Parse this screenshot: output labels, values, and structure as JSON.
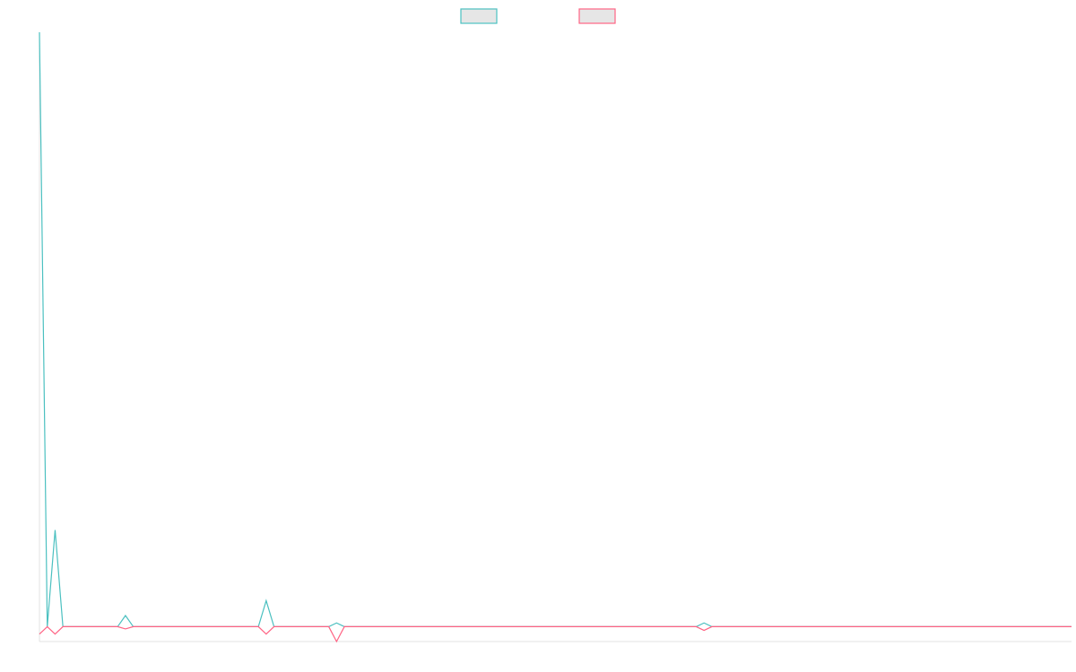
{
  "chart_data": {
    "type": "line",
    "title": "",
    "xlabel": "",
    "ylabel": "",
    "grid": false,
    "legend_position": "top-center",
    "x": [
      0,
      1,
      2,
      3,
      4,
      5,
      6,
      7,
      8,
      9,
      10,
      11,
      12,
      13,
      14,
      15,
      16,
      17,
      18,
      19,
      20,
      21,
      22,
      23,
      24,
      25,
      26,
      27,
      28,
      29,
      30,
      31,
      32,
      33,
      34,
      35,
      36,
      37,
      38,
      39,
      40,
      41,
      42,
      43,
      44,
      45,
      46,
      47,
      48,
      49,
      50,
      51,
      52,
      53,
      54,
      55,
      56,
      57,
      58,
      59,
      60,
      61,
      62,
      63,
      64,
      65,
      66,
      67,
      68,
      69,
      70,
      71,
      72,
      73,
      74,
      75,
      76,
      77,
      78,
      79,
      80,
      81,
      82,
      83,
      84,
      85,
      86,
      87,
      88,
      89,
      90,
      91,
      92,
      93,
      94,
      95,
      96,
      97,
      98,
      99,
      100,
      101,
      102,
      103,
      104,
      105,
      106,
      107,
      108,
      109,
      110,
      111,
      112,
      113,
      114,
      115,
      116,
      117,
      118,
      119,
      120,
      121,
      122,
      123,
      124,
      125,
      126,
      127,
      128,
      129,
      130,
      131,
      132
    ],
    "xlim": [
      0,
      132
    ],
    "ylim": [
      -2,
      80
    ],
    "series": [
      {
        "color": "#4bc0c0",
        "fill": "#e6e6e6",
        "values": [
          80,
          0,
          13,
          0,
          0,
          0,
          0,
          0,
          0,
          0,
          0,
          1.5,
          0,
          0,
          0,
          0,
          0,
          0,
          0,
          0,
          0,
          0,
          0,
          0,
          0,
          0,
          0,
          0,
          0,
          3.5,
          0,
          0,
          0,
          0,
          0,
          0,
          0,
          0,
          0.5,
          0,
          0,
          0,
          0,
          0,
          0,
          0,
          0,
          0,
          0,
          0,
          0,
          0,
          0,
          0,
          0,
          0,
          0,
          0,
          0,
          0,
          0,
          0,
          0,
          0,
          0,
          0,
          0,
          0,
          0,
          0,
          0,
          0,
          0,
          0,
          0,
          0,
          0,
          0,
          0,
          0,
          0,
          0,
          0,
          0,
          0,
          0.5,
          0,
          0,
          0,
          0,
          0,
          0,
          0,
          0,
          0,
          0,
          0,
          0,
          0,
          0,
          0,
          0,
          0,
          0,
          0,
          0,
          0,
          0,
          0,
          0,
          0,
          0,
          0,
          0,
          0,
          0,
          0,
          0,
          0,
          0,
          0,
          0,
          0,
          0,
          0,
          0,
          0,
          0,
          0,
          0,
          0,
          0,
          0
        ]
      },
      {
        "color": "#ff6384",
        "fill": "#e6e6e6",
        "values": [
          -1,
          0,
          -1,
          0,
          0,
          0,
          0,
          0,
          0,
          0,
          0,
          -0.3,
          0,
          0,
          0,
          0,
          0,
          0,
          0,
          0,
          0,
          0,
          0,
          0,
          0,
          0,
          0,
          0,
          0,
          -1,
          0,
          0,
          0,
          0,
          0,
          0,
          0,
          0,
          -2,
          0,
          0,
          0,
          0,
          0,
          0,
          0,
          0,
          0,
          0,
          0,
          0,
          0,
          0,
          0,
          0,
          0,
          0,
          0,
          0,
          0,
          0,
          0,
          0,
          0,
          0,
          0,
          0,
          0,
          0,
          0,
          0,
          0,
          0,
          0,
          0,
          0,
          0,
          0,
          0,
          0,
          0,
          0,
          0,
          0,
          0,
          -0.5,
          0,
          0,
          0,
          0,
          0,
          0,
          0,
          0,
          0,
          0,
          0,
          0,
          0,
          0,
          0,
          0,
          0,
          0,
          0,
          0,
          0,
          0,
          0,
          0,
          0,
          0,
          0,
          0,
          0,
          0,
          0,
          0,
          0,
          0,
          0,
          0,
          0,
          0,
          0,
          0,
          0,
          0,
          0,
          0,
          0,
          0,
          0
        ]
      }
    ]
  }
}
